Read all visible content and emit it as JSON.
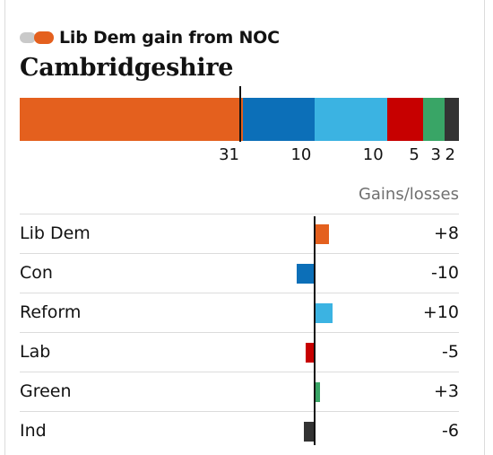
{
  "headline": {
    "text": "Lib Dem gain from NOC",
    "badge_colors": [
      "#c9c9c9",
      "#e4601e"
    ]
  },
  "region": "Cambridgeshire",
  "seats": {
    "total": 61,
    "majority": 31,
    "parties": [
      {
        "name": "Lib Dem",
        "seats": 31,
        "color": "#e4601e",
        "label": "31"
      },
      {
        "name": "Con",
        "seats": 10,
        "color": "#0c6fb8",
        "label": "10"
      },
      {
        "name": "Reform",
        "seats": 10,
        "color": "#3bb3e2",
        "label": "10"
      },
      {
        "name": "Lab",
        "seats": 5,
        "color": "#c70000",
        "label": "5"
      },
      {
        "name": "Green",
        "seats": 3,
        "color": "#39a566",
        "label": "3"
      },
      {
        "name": "Ind",
        "seats": 2,
        "color": "#333333",
        "label": "2"
      }
    ]
  },
  "gains_losses": {
    "header": "Gains/losses",
    "rows": [
      {
        "name": "Lib Dem",
        "change": 8,
        "display": "+8",
        "color": "#e4601e"
      },
      {
        "name": "Con",
        "change": -10,
        "display": "-10",
        "color": "#0c6fb8"
      },
      {
        "name": "Reform",
        "change": 10,
        "display": "+10",
        "color": "#3bb3e2"
      },
      {
        "name": "Lab",
        "change": -5,
        "display": "-5",
        "color": "#c70000"
      },
      {
        "name": "Green",
        "change": 3,
        "display": "+3",
        "color": "#39a566"
      },
      {
        "name": "Ind",
        "change": -6,
        "display": "-6",
        "color": "#333333"
      }
    ]
  }
}
